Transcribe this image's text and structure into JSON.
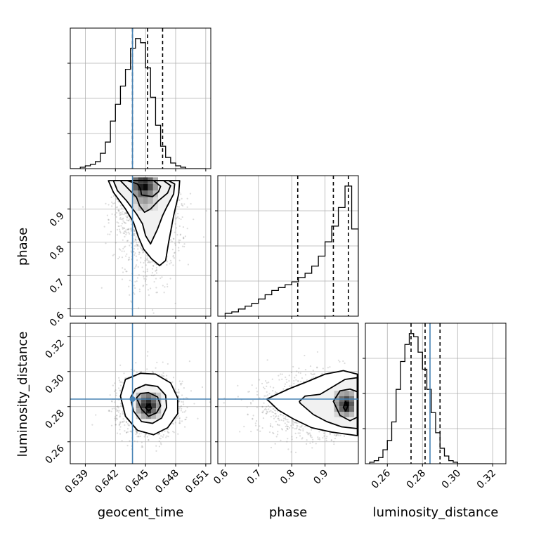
{
  "chart_data": {
    "type": "corner",
    "parameters": [
      "geocent_time",
      "phase",
      "luminosity_distance"
    ],
    "axes": {
      "geocent_time": {
        "label": "geocent_time",
        "range": [
          0.6375,
          0.6515
        ],
        "ticks": [
          0.639,
          0.642,
          0.645,
          0.648,
          0.651
        ],
        "tick_labels": [
          "0.639",
          "0.642",
          "0.645",
          "0.648",
          "0.651"
        ]
      },
      "phase": {
        "label": "phase",
        "range": [
          0.578,
          1.0
        ],
        "ticks": [
          0.6,
          0.7,
          0.8,
          0.9
        ],
        "tick_labels": [
          "0.6",
          "0.7",
          "0.8",
          "0.9"
        ]
      },
      "luminosity_distance": {
        "label": "luminosity_distance",
        "range": [
          0.2475,
          0.3275
        ],
        "ticks": [
          0.26,
          0.28,
          0.3,
          0.32
        ],
        "tick_labels": [
          "0.26",
          "0.28",
          "0.30",
          "0.32"
        ]
      }
    },
    "injection": {
      "geocent_time": 0.6437,
      "phase": null,
      "luminosity_distance": 0.2843
    },
    "quantiles": {
      "geocent_time": [
        0.6437,
        0.6452,
        0.6467
      ],
      "phase": [
        0.818,
        0.925,
        0.97
      ],
      "luminosity_distance": [
        0.2735,
        0.2815,
        0.29
      ]
    },
    "histograms": {
      "geocent_time": {
        "bin_edges": [
          0.6375,
          0.638,
          0.6385,
          0.639,
          0.6395,
          0.64,
          0.6405,
          0.641,
          0.6415,
          0.642,
          0.6425,
          0.643,
          0.6435,
          0.644,
          0.6445,
          0.645,
          0.6455,
          0.646,
          0.6465,
          0.647,
          0.6475,
          0.648,
          0.6485,
          0.649,
          0.6495,
          0.65,
          0.6505,
          0.651
        ],
        "counts": [
          0,
          0,
          1,
          2,
          3,
          5,
          11,
          19,
          34,
          46,
          59,
          71,
          86,
          93,
          90,
          72,
          51,
          31,
          16,
          8,
          4,
          2,
          1,
          0,
          0,
          0,
          0
        ]
      },
      "phase": {
        "bin_edges": [
          0.6,
          0.62,
          0.64,
          0.66,
          0.68,
          0.7,
          0.72,
          0.74,
          0.76,
          0.78,
          0.8,
          0.82,
          0.84,
          0.86,
          0.88,
          0.9,
          0.92,
          0.94,
          0.96,
          0.98,
          1.0
        ],
        "counts": [
          2,
          3,
          5,
          7,
          9,
          12,
          15,
          18,
          20,
          22,
          24,
          27,
          30,
          35,
          42,
          52,
          63,
          76,
          91,
          61
        ]
      },
      "luminosity_distance": {
        "bin_edges": [
          0.25,
          0.2525,
          0.255,
          0.2575,
          0.26,
          0.2625,
          0.265,
          0.2675,
          0.27,
          0.2725,
          0.275,
          0.2775,
          0.28,
          0.2825,
          0.285,
          0.2875,
          0.29,
          0.2925,
          0.295,
          0.2975,
          0.3,
          0.3025,
          0.305,
          0.3075,
          0.31,
          0.3125,
          0.315,
          0.3175,
          0.32
        ],
        "counts": [
          1,
          2,
          4,
          9,
          15,
          27,
          48,
          66,
          77,
          84,
          82,
          72,
          61,
          48,
          33,
          20,
          10,
          5,
          2,
          1,
          0,
          0,
          0,
          0,
          0,
          0,
          0,
          0
        ]
      }
    },
    "joint": {
      "geocent_time_vs_phase": {
        "mode": [
          0.6452,
          0.962
        ],
        "contours": [
          [
            [
              0.6432,
              0.985
            ],
            [
              0.6442,
              0.975
            ],
            [
              0.6445,
              0.96
            ],
            [
              0.6446,
              0.942
            ],
            [
              0.6457,
              0.937
            ],
            [
              0.6463,
              0.952
            ],
            [
              0.6465,
              0.968
            ],
            [
              0.6458,
              0.985
            ]
          ],
          [
            [
              0.6425,
              0.985
            ],
            [
              0.6433,
              0.96
            ],
            [
              0.6441,
              0.935
            ],
            [
              0.6444,
              0.91
            ],
            [
              0.6449,
              0.89
            ],
            [
              0.6455,
              0.9
            ],
            [
              0.6463,
              0.925
            ],
            [
              0.6472,
              0.948
            ],
            [
              0.6475,
              0.97
            ],
            [
              0.6468,
              0.985
            ]
          ],
          [
            [
              0.6418,
              0.985
            ],
            [
              0.6422,
              0.955
            ],
            [
              0.6431,
              0.925
            ],
            [
              0.6441,
              0.885
            ],
            [
              0.6447,
              0.855
            ],
            [
              0.645,
              0.82
            ],
            [
              0.6455,
              0.795
            ],
            [
              0.6462,
              0.84
            ],
            [
              0.6467,
              0.88
            ],
            [
              0.6471,
              0.905
            ],
            [
              0.6478,
              0.945
            ],
            [
              0.6479,
              0.975
            ],
            [
              0.6473,
              0.985
            ]
          ],
          [
            [
              0.6413,
              0.985
            ],
            [
              0.6418,
              0.95
            ],
            [
              0.643,
              0.9
            ],
            [
              0.6438,
              0.86
            ],
            [
              0.6443,
              0.815
            ],
            [
              0.6448,
              0.78
            ],
            [
              0.6456,
              0.75
            ],
            [
              0.6464,
              0.73
            ],
            [
              0.647,
              0.745
            ],
            [
              0.6473,
              0.8
            ],
            [
              0.6478,
              0.88
            ],
            [
              0.6483,
              0.945
            ],
            [
              0.6484,
              0.985
            ]
          ]
        ],
        "density": {
          "x": [
            0.644,
            0.6445,
            0.645,
            0.6455,
            0.646
          ],
          "y": [
            0.985,
            0.965,
            0.945,
            0.925,
            0.905
          ],
          "values": [
            [
              0.55,
              0.75,
              0.8,
              0.6,
              0.3
            ],
            [
              0.6,
              0.9,
              1.0,
              0.7,
              0.35
            ],
            [
              0.35,
              0.55,
              0.6,
              0.45,
              0.2
            ],
            [
              0.15,
              0.3,
              0.35,
              0.25,
              0.1
            ],
            [
              0.05,
              0.15,
              0.2,
              0.12,
              0.05
            ]
          ]
        }
      },
      "geocent_time_vs_luminosity_distance": {
        "mode": [
          0.6453,
          0.28
        ],
        "contours": [
          [
            [
              0.645,
              0.2795
            ],
            [
              0.6453,
              0.2775
            ],
            [
              0.6456,
              0.279
            ],
            [
              0.6454,
              0.2815
            ]
          ],
          [
            [
              0.6441,
              0.285
            ],
            [
              0.6446,
              0.2785
            ],
            [
              0.6453,
              0.2745
            ],
            [
              0.6461,
              0.2765
            ],
            [
              0.6465,
              0.2805
            ],
            [
              0.6462,
              0.2855
            ],
            [
              0.6453,
              0.288
            ],
            [
              0.6445,
              0.2875
            ]
          ],
          [
            [
              0.6435,
              0.285
            ],
            [
              0.6438,
              0.2775
            ],
            [
              0.6446,
              0.2715
            ],
            [
              0.6457,
              0.2705
            ],
            [
              0.6466,
              0.2735
            ],
            [
              0.6471,
              0.2795
            ],
            [
              0.647,
              0.2865
            ],
            [
              0.6462,
              0.2915
            ],
            [
              0.645,
              0.2925
            ],
            [
              0.644,
              0.29
            ]
          ],
          [
            [
              0.6425,
              0.286
            ],
            [
              0.643,
              0.2745
            ],
            [
              0.6442,
              0.2665
            ],
            [
              0.6458,
              0.264
            ],
            [
              0.6472,
              0.268
            ],
            [
              0.6482,
              0.276
            ],
            [
              0.6482,
              0.285
            ],
            [
              0.6475,
              0.2935
            ],
            [
              0.646,
              0.2985
            ],
            [
              0.6445,
              0.299
            ],
            [
              0.643,
              0.2955
            ]
          ]
        ],
        "density": {
          "x": [
            0.6443,
            0.6448,
            0.6453,
            0.6458,
            0.6463
          ],
          "y": [
            0.2865,
            0.2835,
            0.2805,
            0.2775,
            0.2745
          ],
          "values": [
            [
              0.2,
              0.4,
              0.5,
              0.35,
              0.15
            ],
            [
              0.35,
              0.7,
              0.85,
              0.6,
              0.3
            ],
            [
              0.4,
              0.8,
              1.0,
              0.75,
              0.35
            ],
            [
              0.3,
              0.6,
              0.9,
              0.55,
              0.25
            ],
            [
              0.1,
              0.3,
              0.4,
              0.25,
              0.1
            ]
          ]
        }
      },
      "phase_vs_luminosity_distance": {
        "mode": [
          0.96,
          0.28
        ],
        "contours": [
          [
            [
              0.955,
              0.2795
            ],
            [
              0.962,
              0.2775
            ],
            [
              0.968,
              0.28
            ],
            [
              0.962,
              0.283
            ]
          ],
          [
            [
              0.925,
              0.283
            ],
            [
              0.945,
              0.275
            ],
            [
              0.975,
              0.272
            ],
            [
              0.997,
              0.274
            ],
            [
              0.997,
              0.2885
            ],
            [
              0.975,
              0.29
            ],
            [
              0.945,
              0.289
            ]
          ],
          [
            [
              0.825,
              0.282
            ],
            [
              0.865,
              0.2755
            ],
            [
              0.905,
              0.2715
            ],
            [
              0.95,
              0.2685
            ],
            [
              0.997,
              0.2675
            ],
            [
              0.997,
              0.2965
            ],
            [
              0.96,
              0.2955
            ],
            [
              0.925,
              0.2915
            ],
            [
              0.885,
              0.287
            ],
            [
              0.84,
              0.286
            ],
            [
              0.823,
              0.283
            ]
          ],
          [
            [
              0.725,
              0.2843
            ],
            [
              0.76,
              0.278
            ],
            [
              0.805,
              0.273
            ],
            [
              0.86,
              0.268
            ],
            [
              0.92,
              0.2655
            ],
            [
              0.997,
              0.2635
            ],
            [
              0.997,
              0.2985
            ],
            [
              0.955,
              0.3005
            ],
            [
              0.9,
              0.2985
            ],
            [
              0.85,
              0.2945
            ],
            [
              0.79,
              0.29
            ]
          ]
        ],
        "density": {
          "x": [
            0.935,
            0.95,
            0.965,
            0.98
          ],
          "y": [
            0.2875,
            0.2845,
            0.2815,
            0.2785,
            0.2755
          ],
          "values": [
            [
              0.15,
              0.3,
              0.35,
              0.25
            ],
            [
              0.3,
              0.55,
              0.7,
              0.5
            ],
            [
              0.35,
              0.7,
              1.0,
              0.65
            ],
            [
              0.3,
              0.6,
              0.85,
              0.55
            ],
            [
              0.1,
              0.25,
              0.35,
              0.2
            ]
          ]
        }
      }
    },
    "colors": {
      "injection": "#4682b4",
      "hist": "#000000",
      "grid": "#b0b0b0",
      "scatter": "#808080",
      "contour": "#000000"
    }
  }
}
